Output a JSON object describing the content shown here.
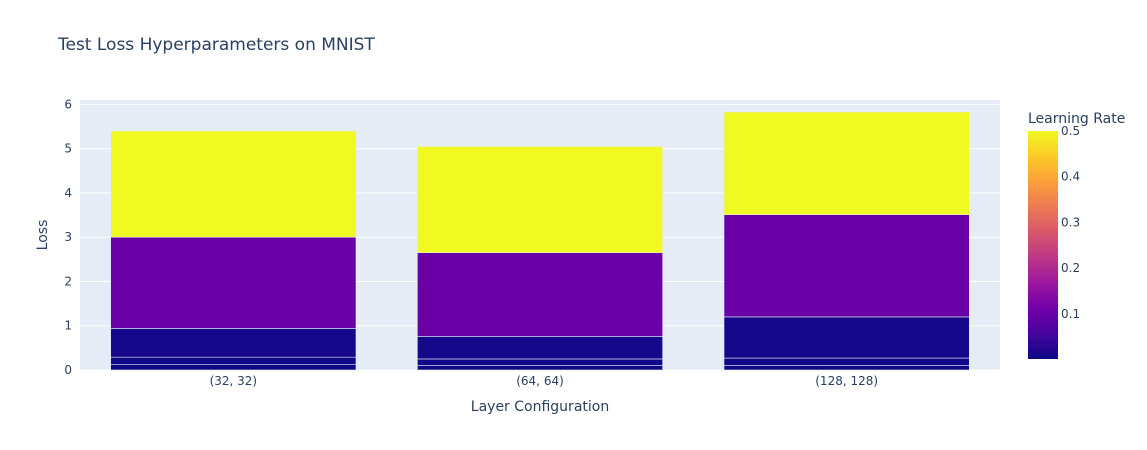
{
  "chart_data": {
    "type": "bar",
    "barmode": "stack",
    "title": "Test Loss Hyperparameters on MNIST",
    "xlabel": "Layer Configuration",
    "ylabel": "Loss",
    "categories": [
      "(32, 32)",
      "(64, 64)",
      "(128, 128)"
    ],
    "ylim": [
      0,
      6.1
    ],
    "yticks": [
      0,
      1,
      2,
      3,
      4,
      5,
      6
    ],
    "grid": true,
    "segments": [
      [
        {
          "learning_rate": 0.001,
          "value": 0.12
        },
        {
          "learning_rate": 0.005,
          "value": 0.17
        },
        {
          "learning_rate": 0.01,
          "value": 0.65
        },
        {
          "learning_rate": 0.1,
          "value": 2.06
        },
        {
          "learning_rate": 0.5,
          "value": 2.4
        }
      ],
      [
        {
          "learning_rate": 0.001,
          "value": 0.1
        },
        {
          "learning_rate": 0.005,
          "value": 0.15
        },
        {
          "learning_rate": 0.01,
          "value": 0.51
        },
        {
          "learning_rate": 0.1,
          "value": 1.89
        },
        {
          "learning_rate": 0.5,
          "value": 2.4
        }
      ],
      [
        {
          "learning_rate": 0.001,
          "value": 0.1
        },
        {
          "learning_rate": 0.005,
          "value": 0.17
        },
        {
          "learning_rate": 0.01,
          "value": 0.93
        },
        {
          "learning_rate": 0.1,
          "value": 2.31
        },
        {
          "learning_rate": 0.5,
          "value": 2.32
        }
      ]
    ],
    "colorbar": {
      "title": "Learning Rate",
      "range": [
        0.001,
        0.5
      ],
      "ticks": [
        "0.1",
        "0.2",
        "0.3",
        "0.4",
        "0.5"
      ],
      "tick_values": [
        0.1,
        0.2,
        0.3,
        0.4,
        0.5
      ],
      "colorscale": [
        "#0d0887",
        "#46039f",
        "#7201a8",
        "#9c179e",
        "#bd3786",
        "#d8576b",
        "#ed7953",
        "#fb9f3a",
        "#fdca26",
        "#f0f921"
      ]
    },
    "colors": {
      "plot_background": "#e5ecf6",
      "gridline": "#ffffff",
      "text": "#2a3f5f"
    }
  }
}
